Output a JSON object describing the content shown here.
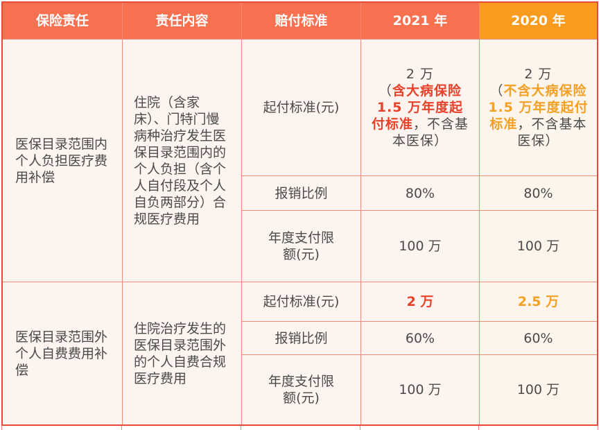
{
  "headers": [
    "保险责任",
    "责任内容",
    "赔付标准",
    "2021 年",
    "2020 年"
  ],
  "groups": [
    {
      "responsibility": "医保目录范围内个人负担医疗费用补偿",
      "content": "住院（含家床）、门特门慢病种治疗发生医保目录范围内的个人负担（含个人自付段及个人自负两部分）合规医疗费用",
      "rows": [
        {
          "standard": "起付标准(元)",
          "y2021": {
            "prefix": "2 万",
            "open": "（",
            "highlight": "含大病保险 1.5 万年度起付标准",
            "suffix": "，不含基本医保）"
          },
          "y2020": {
            "prefix": "2 万",
            "open": "（",
            "highlight": "不含大病保险 1.5 万年度起付标准",
            "suffix": "，不含基本医保）"
          }
        },
        {
          "standard": "报销比例",
          "y2021": "80%",
          "y2020": "80%"
        },
        {
          "standard": "年度支付限额(元)",
          "y2021": "100 万",
          "y2020": "100 万"
        }
      ]
    },
    {
      "responsibility": "医保目录范围外个人自费费用补偿",
      "content": "住院治疗发生的医保目录范围外的个人自费合规医疗费用",
      "rows": [
        {
          "standard": "起付标准(元)",
          "y2021": "2 万",
          "y2020": "2.5 万"
        },
        {
          "standard": "报销比例",
          "y2021": "60%",
          "y2020": "60%"
        },
        {
          "standard": "年度支付限额(元)",
          "y2021": "100 万",
          "y2020": "100 万"
        }
      ]
    }
  ],
  "colors": {
    "header": "#f7704f",
    "header_2020": "#f89b1e",
    "highlight_2021": "#e8412a",
    "highlight_2020": "#f4a024",
    "border": "#e84a3a"
  }
}
